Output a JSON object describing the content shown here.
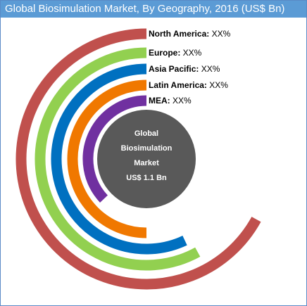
{
  "chart_data": {
    "type": "radial-bar",
    "title": "Global Biosimulation Market, By Geography, 2016 (US$ Bn)",
    "center_label": [
      "Global",
      "Biosimulation",
      "Market",
      "US$ 1.1 Bn"
    ],
    "unit": "US$ Bn",
    "series": [
      {
        "category": "North America",
        "value_label": "XX%",
        "color": "#c0504d",
        "sweep_fraction": 0.67
      },
      {
        "category": "Europe",
        "value_label": "XX%",
        "color": "#92d050",
        "sweep_fraction": 0.58
      },
      {
        "category": "Asia Pacific",
        "value_label": "XX%",
        "color": "#0070c0",
        "sweep_fraction": 0.57
      },
      {
        "category": "Latin America",
        "value_label": "XX%",
        "color": "#f07800",
        "sweep_fraction": 0.5
      },
      {
        "category": "MEA",
        "value_label": "XX%",
        "color": "#7030a0",
        "sweep_fraction": 0.37
      }
    ],
    "center_fill": "#595959"
  }
}
